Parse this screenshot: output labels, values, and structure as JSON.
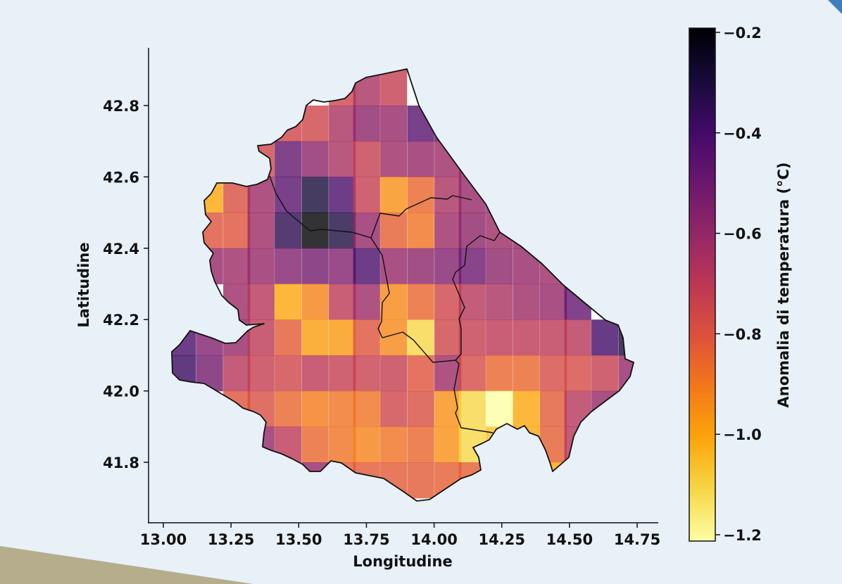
{
  "chart_data": {
    "type": "heatmap",
    "title": "",
    "xlabel": "Longitudine",
    "ylabel": "Latitudine",
    "xlim": [
      12.95,
      14.83
    ],
    "ylim": [
      41.65,
      42.96
    ],
    "x_ticks": [
      "13.00",
      "13.25",
      "13.50",
      "13.75",
      "14.00",
      "14.25",
      "14.50",
      "14.75"
    ],
    "y_ticks": [
      "41.8",
      "42.0",
      "42.2",
      "42.4",
      "42.6",
      "42.8"
    ],
    "colorbar": {
      "label": "Anomalia di temperatura (°C)",
      "colormap": "inferno",
      "vmin": -1.2,
      "vmax": -0.2,
      "ticks": [
        "−0.2",
        "−0.4",
        "−0.6",
        "−0.8",
        "−1.0",
        "−1.2"
      ],
      "tick_values": [
        -0.2,
        -0.4,
        -0.6,
        -0.8,
        -1.0,
        -1.2
      ]
    },
    "grid_on": false,
    "lon": [
      13.07,
      13.17,
      13.27,
      13.36,
      13.46,
      13.56,
      13.66,
      13.75,
      13.85,
      13.95,
      14.05,
      14.14,
      14.24,
      14.34,
      14.44,
      14.53,
      14.63,
      14.73
    ],
    "lat": [
      42.85,
      42.75,
      42.65,
      42.55,
      42.45,
      42.35,
      42.25,
      42.15,
      42.05,
      41.95,
      41.85,
      41.75
    ],
    "values": [
      [
        null,
        null,
        null,
        null,
        null,
        null,
        -0.75,
        -0.65,
        -0.72,
        null,
        null,
        null,
        null,
        null,
        null,
        null,
        null,
        null
      ],
      [
        null,
        null,
        null,
        null,
        -0.75,
        -0.75,
        -0.65,
        -0.58,
        -0.6,
        -0.45,
        -0.45,
        null,
        null,
        null,
        null,
        null,
        null,
        null
      ],
      [
        null,
        null,
        null,
        -0.75,
        -0.48,
        -0.58,
        -0.65,
        -0.72,
        -0.62,
        -0.6,
        -0.62,
        -0.62,
        null,
        null,
        null,
        null,
        null,
        null
      ],
      [
        null,
        -1.0,
        -0.78,
        -0.62,
        -0.45,
        -0.3,
        -0.42,
        -0.72,
        -0.95,
        -0.85,
        -0.65,
        -0.6,
        -0.6,
        null,
        null,
        null,
        null,
        null
      ],
      [
        null,
        -0.8,
        -0.8,
        -0.62,
        -0.35,
        -0.2,
        -0.32,
        -0.6,
        -0.83,
        -0.88,
        -0.62,
        -0.58,
        -0.62,
        -0.6,
        null,
        null,
        null,
        null
      ],
      [
        null,
        -0.6,
        -0.62,
        -0.6,
        -0.55,
        -0.52,
        -0.55,
        -0.42,
        -0.6,
        -0.58,
        -0.55,
        -0.5,
        -0.58,
        -0.6,
        -0.62,
        null,
        null,
        null
      ],
      [
        null,
        null,
        -0.62,
        -0.68,
        -1.0,
        -0.92,
        -0.7,
        -0.62,
        -0.93,
        -0.85,
        -0.75,
        -0.68,
        -0.65,
        -0.62,
        -0.6,
        -0.48,
        null,
        null
      ],
      [
        -0.42,
        -0.55,
        -0.6,
        -0.7,
        -0.82,
        -0.98,
        -0.97,
        -0.8,
        -0.93,
        -1.1,
        -0.75,
        -0.72,
        -0.7,
        -0.7,
        -0.7,
        -0.68,
        -0.4,
        -0.3
      ],
      [
        -0.38,
        -0.52,
        -0.68,
        -0.72,
        -0.75,
        -0.7,
        -0.72,
        -0.73,
        -0.72,
        -0.8,
        -0.62,
        -0.77,
        -0.85,
        -0.85,
        -0.77,
        -0.77,
        -0.72,
        -0.6
      ],
      [
        null,
        null,
        -0.8,
        -0.78,
        -0.85,
        -0.9,
        -0.88,
        -0.88,
        -0.75,
        -0.78,
        -0.95,
        -1.1,
        -1.2,
        -1.0,
        -0.82,
        -0.68,
        -0.6,
        null
      ],
      [
        null,
        null,
        null,
        -0.6,
        -0.7,
        -0.85,
        -0.88,
        -0.92,
        -0.88,
        -0.85,
        -0.95,
        -1.1,
        -1.05,
        -1.0,
        -0.83,
        -0.68,
        null,
        null
      ],
      [
        null,
        null,
        null,
        null,
        null,
        -0.6,
        -0.82,
        -0.82,
        -0.82,
        -0.82,
        -0.83,
        -0.83,
        null,
        null,
        -1.0,
        null,
        null,
        null
      ]
    ]
  }
}
